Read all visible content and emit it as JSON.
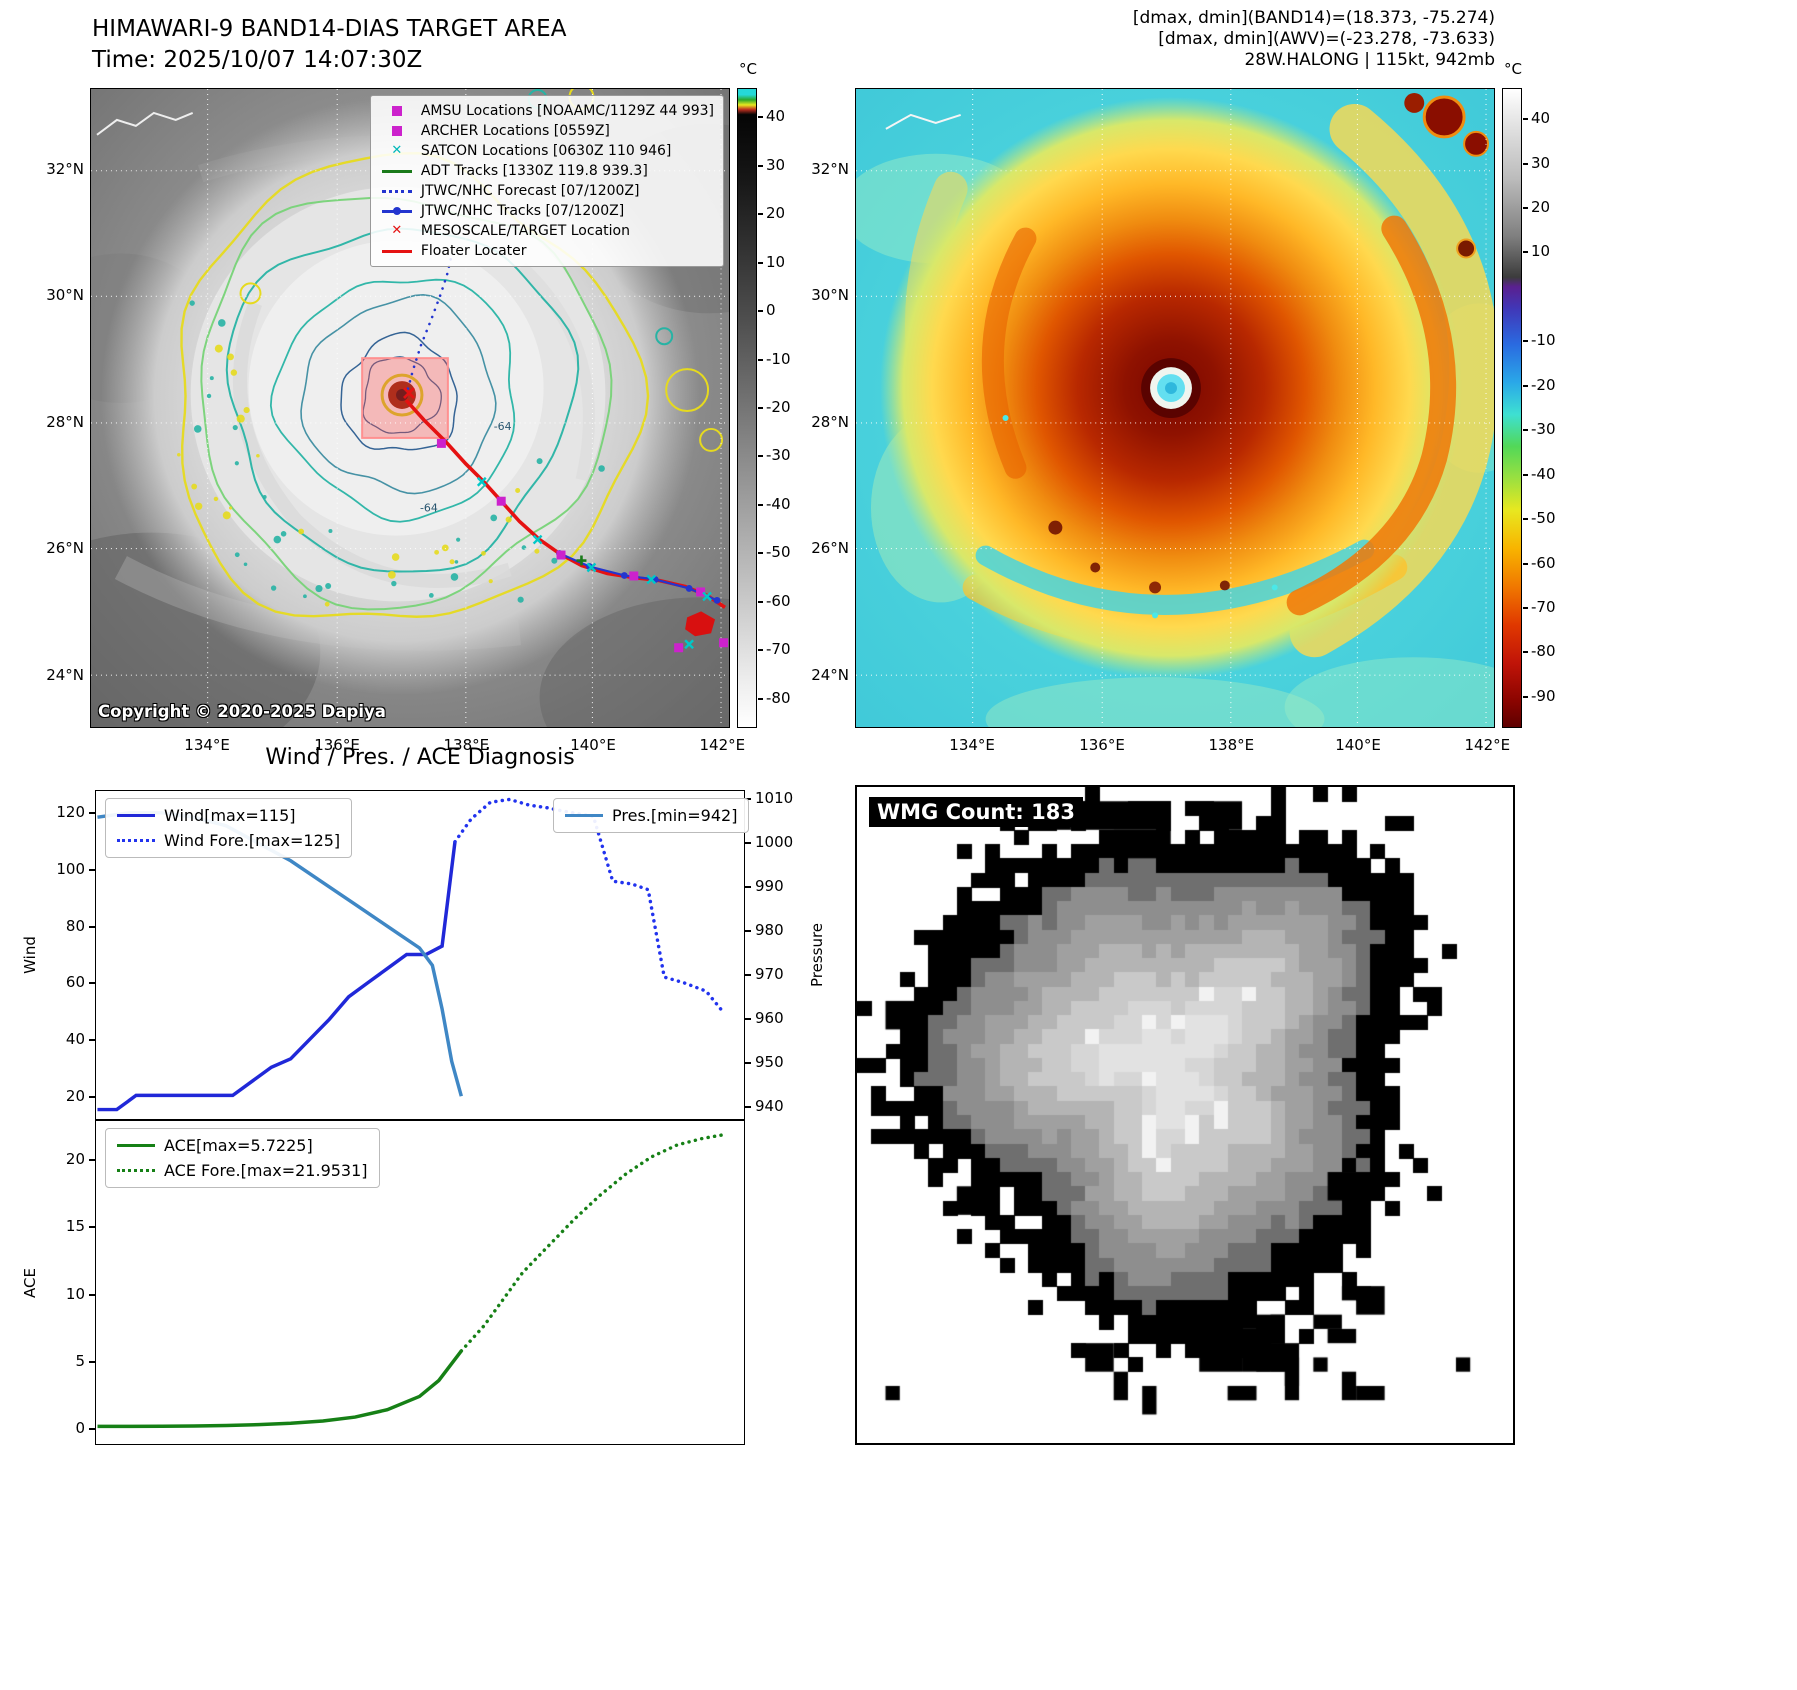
{
  "band14_panel": {
    "title": "HIMAWARI-9 BAND14-DIAS TARGET AREA",
    "time": "Time: 2025/10/07 14:07:30Z",
    "copyright": "Copyright © 2020-2025 Dapiya",
    "colorbar": {
      "unit": "°C",
      "ticks": [
        40,
        30,
        20,
        10,
        0,
        -10,
        -20,
        -30,
        -40,
        -50,
        -60,
        -70,
        -80
      ],
      "vtop": 46,
      "vbottom": -86
    },
    "legend_items": [
      {
        "label": "AMSU Locations [NOAAMC/1129Z 44 993]",
        "marker": "square",
        "color": "#cc22cc"
      },
      {
        "label": "ARCHER Locations [0559Z]",
        "marker": "square",
        "color": "#cc22cc"
      },
      {
        "label": "SATCON Locations [0630Z 110 946]",
        "marker": "x",
        "color": "#00b8b8"
      },
      {
        "label": "ADT Tracks [1330Z 119.8 939.3]",
        "marker": "line",
        "color": "#1a7a1a"
      },
      {
        "label": "JTWC/NHC Forecast [07/1200Z]",
        "marker": "dotted",
        "color": "#2335cf"
      },
      {
        "label": "JTWC/NHC Tracks [07/1200Z]",
        "marker": "line-dot",
        "color": "#2335cf"
      },
      {
        "label": "MESOSCALE/TARGET Location",
        "marker": "x",
        "color": "#e51212"
      },
      {
        "label": "Floater Locater",
        "marker": "line",
        "color": "#e51212"
      }
    ],
    "contour_labels": [
      "-64",
      "-64"
    ]
  },
  "awv_panel": {
    "header": [
      "[dmax, dmin](BAND14)=(18.373, -75.274)",
      "[dmax, dmin](AWV)=(-23.278, -73.633)",
      "28W.HALONG | 115kt, 942mb"
    ],
    "colorbar": {
      "unit": "°C",
      "ticks": [
        40,
        30,
        20,
        10,
        -10,
        -20,
        -30,
        -40,
        -50,
        -60,
        -70,
        -80,
        -90
      ],
      "vtop": 47,
      "vbottom": -97
    }
  },
  "geo": {
    "lat_ticks": [
      {
        "label": "32°N",
        "f": 0.128
      },
      {
        "label": "30°N",
        "f": 0.325
      },
      {
        "label": "28°N",
        "f": 0.523
      },
      {
        "label": "26°N",
        "f": 0.72
      },
      {
        "label": "24°N",
        "f": 0.919
      }
    ],
    "lon_ticks": [
      {
        "label": "134°E",
        "f": 0.183
      },
      {
        "label": "136°E",
        "f": 0.386
      },
      {
        "label": "138°E",
        "f": 0.588
      },
      {
        "label": "140°E",
        "f": 0.786
      },
      {
        "label": "142°E",
        "f": 0.988
      }
    ]
  },
  "wmg_panel": {
    "count_label": "WMG Count: 183"
  },
  "chart_data": [
    {
      "type": "line",
      "title": "Wind / Pres. / ACE Diagnosis",
      "xlabel": "",
      "ylabel": "Wind",
      "y2label": "Pressure",
      "grid": false,
      "axes": {
        "y": {
          "min": 12,
          "max": 128,
          "ticks": [
            20,
            40,
            60,
            80,
            100,
            120
          ]
        },
        "y2": {
          "min": 937,
          "max": 1012,
          "ticks": [
            940,
            950,
            960,
            970,
            980,
            990,
            1000,
            1010
          ]
        }
      },
      "legend_left": [
        {
          "label": "Wind[max=115]",
          "style": "solid",
          "color": "#2028d8"
        },
        {
          "label": "Wind Fore.[max=125]",
          "style": "dotted",
          "color": "#2233ee"
        }
      ],
      "legend_right": [
        {
          "label": "Pres.[min=942]",
          "style": "solid",
          "color": "#3f87c5"
        }
      ],
      "series": [
        {
          "name": "Wind",
          "axis": "y",
          "style": "solid",
          "color": "#2028d8",
          "width": 3.5,
          "x": [
            0,
            0.03,
            0.06,
            0.09,
            0.12,
            0.15,
            0.18,
            0.21,
            0.24,
            0.27,
            0.3,
            0.33,
            0.36,
            0.39,
            0.42,
            0.45,
            0.48,
            0.51,
            0.535,
            0.555
          ],
          "values": [
            15,
            15,
            20,
            20,
            20,
            20,
            20,
            20,
            25,
            30,
            33,
            40,
            47,
            55,
            60,
            65,
            70,
            70,
            73,
            110
          ]
        },
        {
          "name": "Wind Fore.",
          "axis": "y",
          "style": "dotted",
          "color": "#2233ee",
          "width": 3.5,
          "x": [
            0.555,
            0.58,
            0.61,
            0.64,
            0.67,
            0.7,
            0.72,
            0.745,
            0.77,
            0.8,
            0.83,
            0.855,
            0.88,
            0.91,
            0.945,
            0.97
          ],
          "values": [
            110,
            118,
            124,
            125,
            123,
            122,
            121,
            120,
            119,
            96,
            95,
            93,
            62,
            60,
            57,
            50
          ]
        },
        {
          "name": "Pres.",
          "axis": "y2",
          "style": "solid",
          "color": "#3f87c5",
          "width": 3.5,
          "x": [
            0,
            0.05,
            0.1,
            0.15,
            0.2,
            0.25,
            0.3,
            0.35,
            0.4,
            0.44,
            0.47,
            0.5,
            0.52,
            0.535,
            0.55,
            0.565
          ],
          "values": [
            1006,
            1007,
            1007,
            1006,
            1004,
            1000,
            996,
            991,
            986,
            982,
            979,
            976,
            972,
            962,
            950,
            942
          ]
        }
      ]
    },
    {
      "type": "line",
      "ylabel": "ACE",
      "grid": false,
      "axes": {
        "y": {
          "min": -1.2,
          "max": 23,
          "ticks": [
            0,
            5,
            10,
            15,
            20
          ]
        }
      },
      "legend_left": [
        {
          "label": "ACE[max=5.7225]",
          "style": "solid",
          "color": "#168016"
        },
        {
          "label": "ACE Fore.[max=21.9531]",
          "style": "dotted",
          "color": "#168016"
        }
      ],
      "series": [
        {
          "name": "ACE",
          "axis": "y",
          "style": "solid",
          "color": "#168016",
          "width": 3.5,
          "x": [
            0,
            0.05,
            0.1,
            0.15,
            0.2,
            0.25,
            0.3,
            0.35,
            0.4,
            0.45,
            0.5,
            0.53,
            0.565
          ],
          "values": [
            0.05,
            0.05,
            0.06,
            0.08,
            0.12,
            0.18,
            0.28,
            0.45,
            0.75,
            1.3,
            2.3,
            3.5,
            5.72
          ]
        },
        {
          "name": "ACE Fore.",
          "axis": "y",
          "style": "dotted",
          "color": "#168016",
          "width": 3.5,
          "x": [
            0.565,
            0.6,
            0.63,
            0.66,
            0.7,
            0.74,
            0.78,
            0.82,
            0.86,
            0.9,
            0.94,
            0.97
          ],
          "values": [
            5.72,
            7.6,
            9.6,
            11.6,
            13.6,
            15.6,
            17.4,
            19.0,
            20.3,
            21.2,
            21.7,
            21.95
          ]
        }
      ]
    }
  ]
}
